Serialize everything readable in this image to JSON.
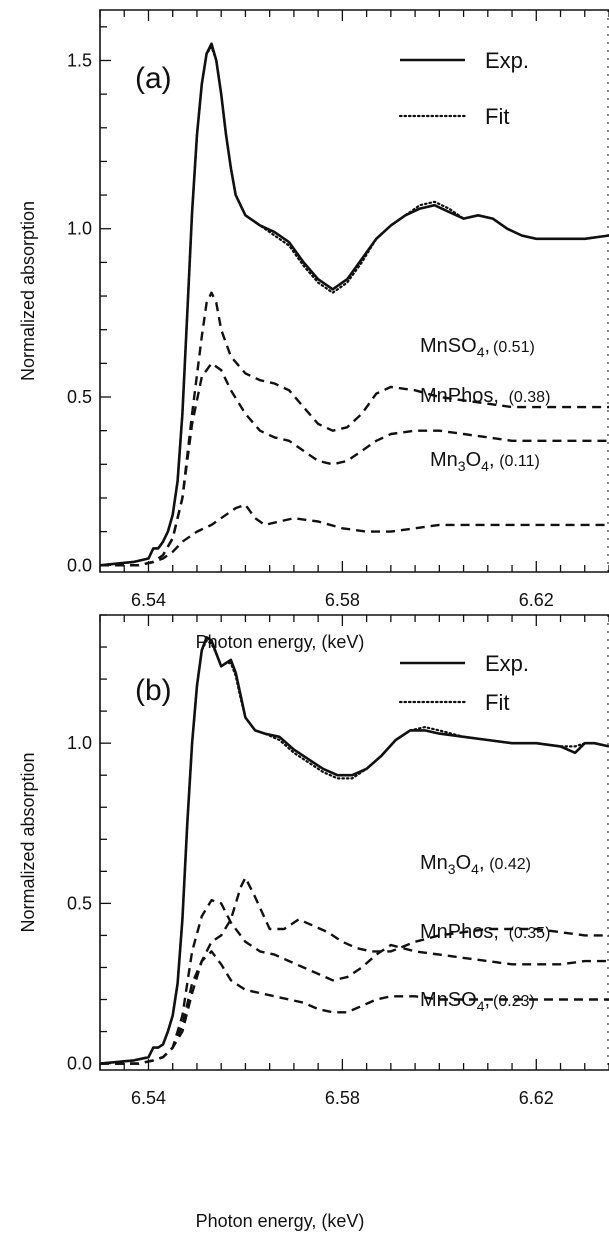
{
  "chart_data": [
    {
      "type": "line",
      "panel_label": "(a)",
      "xlabel": "Photon energy, (keV)",
      "ylabel": "Normalized absorption",
      "xlim": [
        6.53,
        6.635
      ],
      "ylim": [
        -0.02,
        1.65
      ],
      "xticks": [
        6.54,
        6.58,
        6.62
      ],
      "xtick_labels": [
        "6.54",
        "6.58",
        "6.62"
      ],
      "yticks": [
        0.0,
        0.5,
        1.0,
        1.5
      ],
      "ytick_labels": [
        "0.0",
        "0.5",
        "1.0",
        "1.5"
      ],
      "legend": [
        {
          "label": "Exp.",
          "style": "solid"
        },
        {
          "label": "Fit",
          "style": "dotted"
        }
      ],
      "series": [
        {
          "name": "Exp.",
          "style": "solid",
          "x": [
            6.53,
            6.537,
            6.54,
            6.541,
            6.542,
            6.543,
            6.544,
            6.545,
            6.546,
            6.547,
            6.548,
            6.549,
            6.55,
            6.551,
            6.552,
            6.553,
            6.554,
            6.555,
            6.556,
            6.557,
            6.558,
            6.56,
            6.563,
            6.566,
            6.569,
            6.572,
            6.575,
            6.578,
            6.581,
            6.584,
            6.587,
            6.59,
            6.593,
            6.596,
            6.599,
            6.602,
            6.605,
            6.608,
            6.611,
            6.614,
            6.617,
            6.62,
            6.625,
            6.63,
            6.635
          ],
          "y": [
            0.0,
            0.01,
            0.02,
            0.05,
            0.05,
            0.07,
            0.1,
            0.15,
            0.25,
            0.45,
            0.75,
            1.05,
            1.28,
            1.43,
            1.52,
            1.55,
            1.5,
            1.4,
            1.28,
            1.18,
            1.1,
            1.04,
            1.01,
            0.99,
            0.96,
            0.9,
            0.85,
            0.82,
            0.85,
            0.91,
            0.97,
            1.01,
            1.04,
            1.06,
            1.07,
            1.05,
            1.03,
            1.04,
            1.03,
            1.0,
            0.98,
            0.97,
            0.97,
            0.97,
            0.98
          ]
        },
        {
          "name": "Fit",
          "style": "dotted",
          "x": [
            6.53,
            6.537,
            6.54,
            6.541,
            6.542,
            6.543,
            6.544,
            6.545,
            6.546,
            6.547,
            6.548,
            6.549,
            6.55,
            6.551,
            6.552,
            6.553,
            6.554,
            6.555,
            6.556,
            6.557,
            6.558,
            6.56,
            6.563,
            6.566,
            6.569,
            6.572,
            6.575,
            6.578,
            6.581,
            6.584,
            6.587,
            6.59,
            6.593,
            6.596,
            6.599,
            6.602,
            6.605,
            6.608,
            6.611,
            6.614,
            6.617,
            6.62,
            6.625,
            6.63,
            6.635
          ],
          "y": [
            0.0,
            0.01,
            0.02,
            0.05,
            0.05,
            0.07,
            0.1,
            0.15,
            0.25,
            0.45,
            0.75,
            1.05,
            1.28,
            1.43,
            1.52,
            1.54,
            1.5,
            1.4,
            1.28,
            1.18,
            1.1,
            1.04,
            1.01,
            0.98,
            0.95,
            0.89,
            0.84,
            0.81,
            0.84,
            0.9,
            0.97,
            1.01,
            1.04,
            1.07,
            1.08,
            1.06,
            1.03,
            1.04,
            1.03,
            1.0,
            0.98,
            0.97,
            0.97,
            0.97,
            0.98
          ]
        },
        {
          "name": "MnSO4",
          "style": "dashed",
          "x": [
            6.53,
            6.538,
            6.541,
            6.543,
            6.545,
            6.547,
            6.549,
            6.551,
            6.552,
            6.553,
            6.554,
            6.555,
            6.557,
            6.56,
            6.563,
            6.566,
            6.569,
            6.572,
            6.575,
            6.578,
            6.581,
            6.584,
            6.587,
            6.59,
            6.595,
            6.6,
            6.605,
            6.61,
            6.615,
            6.62,
            6.625,
            6.63,
            6.635
          ],
          "y": [
            0.0,
            0.0,
            0.01,
            0.03,
            0.08,
            0.2,
            0.45,
            0.68,
            0.78,
            0.81,
            0.78,
            0.7,
            0.62,
            0.57,
            0.55,
            0.54,
            0.52,
            0.47,
            0.42,
            0.4,
            0.41,
            0.45,
            0.51,
            0.53,
            0.52,
            0.5,
            0.49,
            0.48,
            0.47,
            0.47,
            0.47,
            0.47,
            0.47
          ]
        },
        {
          "name": "MnPhos",
          "style": "dashed",
          "x": [
            6.53,
            6.538,
            6.541,
            6.543,
            6.545,
            6.547,
            6.549,
            6.551,
            6.553,
            6.555,
            6.557,
            6.56,
            6.563,
            6.566,
            6.569,
            6.572,
            6.575,
            6.578,
            6.581,
            6.584,
            6.587,
            6.59,
            6.595,
            6.6,
            6.605,
            6.61,
            6.615,
            6.62,
            6.625,
            6.63,
            6.635
          ],
          "y": [
            0.0,
            0.0,
            0.01,
            0.03,
            0.08,
            0.2,
            0.42,
            0.56,
            0.6,
            0.58,
            0.52,
            0.45,
            0.4,
            0.38,
            0.37,
            0.34,
            0.31,
            0.3,
            0.31,
            0.34,
            0.37,
            0.39,
            0.4,
            0.4,
            0.39,
            0.38,
            0.37,
            0.37,
            0.37,
            0.37,
            0.37
          ]
        },
        {
          "name": "Mn3O4",
          "style": "dashed",
          "x": [
            6.53,
            6.538,
            6.541,
            6.543,
            6.545,
            6.547,
            6.55,
            6.553,
            6.556,
            6.558,
            6.56,
            6.562,
            6.564,
            6.567,
            6.57,
            6.575,
            6.58,
            6.585,
            6.59,
            6.595,
            6.6,
            6.605,
            6.61,
            6.615,
            6.62,
            6.625,
            6.63,
            6.635
          ],
          "y": [
            0.0,
            0.0,
            0.01,
            0.02,
            0.04,
            0.07,
            0.1,
            0.12,
            0.15,
            0.17,
            0.18,
            0.14,
            0.12,
            0.13,
            0.14,
            0.13,
            0.11,
            0.1,
            0.1,
            0.11,
            0.12,
            0.12,
            0.12,
            0.12,
            0.12,
            0.12,
            0.12,
            0.12
          ]
        }
      ],
      "annotations": [
        {
          "name": "MnSO4",
          "sub": "4",
          "base": "MnSO",
          "weight": "(0.51)"
        },
        {
          "name": "MnPhos",
          "weight": "(0.38)"
        },
        {
          "name": "Mn3O4",
          "weight": "(0.11)"
        }
      ]
    },
    {
      "type": "line",
      "panel_label": "(b)",
      "xlabel": "Photon energy, (keV)",
      "ylabel": "Normalized absorption",
      "xlim": [
        6.53,
        6.635
      ],
      "ylim": [
        -0.02,
        1.4
      ],
      "xticks": [
        6.54,
        6.58,
        6.62
      ],
      "xtick_labels": [
        "6.54",
        "6.58",
        "6.62"
      ],
      "yticks": [
        0.0,
        0.5,
        1.0
      ],
      "ytick_labels": [
        "0.0",
        "0.5",
        "1.0"
      ],
      "legend": [
        {
          "label": "Exp.",
          "style": "solid"
        },
        {
          "label": "Fit",
          "style": "dotted"
        }
      ],
      "series": [
        {
          "name": "Exp.",
          "style": "solid",
          "x": [
            6.53,
            6.537,
            6.54,
            6.541,
            6.542,
            6.543,
            6.544,
            6.545,
            6.546,
            6.547,
            6.548,
            6.549,
            6.55,
            6.551,
            6.552,
            6.553,
            6.554,
            6.555,
            6.556,
            6.557,
            6.558,
            6.559,
            6.56,
            6.562,
            6.564,
            6.567,
            6.57,
            6.573,
            6.576,
            6.579,
            6.582,
            6.585,
            6.588,
            6.591,
            6.594,
            6.597,
            6.6,
            6.605,
            6.61,
            6.615,
            6.62,
            6.625,
            6.628,
            6.63,
            6.632,
            6.635
          ],
          "y": [
            0.0,
            0.01,
            0.02,
            0.05,
            0.05,
            0.06,
            0.1,
            0.15,
            0.25,
            0.45,
            0.75,
            1.0,
            1.18,
            1.29,
            1.33,
            1.32,
            1.28,
            1.24,
            1.25,
            1.26,
            1.22,
            1.15,
            1.08,
            1.04,
            1.03,
            1.02,
            0.98,
            0.95,
            0.92,
            0.9,
            0.9,
            0.92,
            0.96,
            1.01,
            1.04,
            1.04,
            1.03,
            1.02,
            1.01,
            1.0,
            1.0,
            0.99,
            0.97,
            1.0,
            1.0,
            0.99
          ]
        },
        {
          "name": "Fit",
          "style": "dotted",
          "x": [
            6.53,
            6.537,
            6.54,
            6.541,
            6.542,
            6.543,
            6.544,
            6.545,
            6.546,
            6.547,
            6.548,
            6.549,
            6.55,
            6.551,
            6.552,
            6.553,
            6.554,
            6.555,
            6.556,
            6.557,
            6.558,
            6.559,
            6.56,
            6.562,
            6.564,
            6.567,
            6.57,
            6.573,
            6.576,
            6.579,
            6.582,
            6.585,
            6.588,
            6.591,
            6.594,
            6.597,
            6.6,
            6.605,
            6.61,
            6.615,
            6.62,
            6.625,
            6.628,
            6.63,
            6.632,
            6.635
          ],
          "y": [
            0.0,
            0.01,
            0.02,
            0.05,
            0.05,
            0.06,
            0.1,
            0.15,
            0.25,
            0.45,
            0.75,
            1.0,
            1.18,
            1.29,
            1.32,
            1.31,
            1.28,
            1.24,
            1.25,
            1.25,
            1.21,
            1.14,
            1.08,
            1.04,
            1.03,
            1.01,
            0.97,
            0.94,
            0.91,
            0.89,
            0.89,
            0.92,
            0.96,
            1.01,
            1.04,
            1.05,
            1.04,
            1.02,
            1.01,
            1.0,
            1.0,
            0.99,
            0.99,
            1.0,
            1.0,
            0.99
          ]
        },
        {
          "name": "Mn3O4",
          "style": "dashed",
          "x": [
            6.53,
            6.538,
            6.541,
            6.543,
            6.545,
            6.547,
            6.549,
            6.551,
            6.553,
            6.555,
            6.557,
            6.559,
            6.56,
            6.562,
            6.565,
            6.568,
            6.571,
            6.574,
            6.577,
            6.58,
            6.583,
            6.586,
            6.59,
            6.595,
            6.6,
            6.605,
            6.61,
            6.615,
            6.62,
            6.625,
            6.63,
            6.635
          ],
          "y": [
            0.0,
            0.0,
            0.01,
            0.02,
            0.05,
            0.1,
            0.22,
            0.32,
            0.38,
            0.4,
            0.45,
            0.55,
            0.58,
            0.52,
            0.42,
            0.42,
            0.45,
            0.43,
            0.41,
            0.38,
            0.36,
            0.35,
            0.35,
            0.38,
            0.4,
            0.41,
            0.42,
            0.42,
            0.42,
            0.41,
            0.4,
            0.4
          ]
        },
        {
          "name": "MnPhos",
          "style": "dashed",
          "x": [
            6.53,
            6.538,
            6.541,
            6.543,
            6.545,
            6.547,
            6.549,
            6.551,
            6.553,
            6.555,
            6.557,
            6.56,
            6.563,
            6.566,
            6.569,
            6.572,
            6.575,
            6.578,
            6.581,
            6.584,
            6.587,
            6.59,
            6.595,
            6.6,
            6.605,
            6.61,
            6.615,
            6.62,
            6.625,
            6.63,
            6.635
          ],
          "y": [
            0.0,
            0.0,
            0.01,
            0.02,
            0.05,
            0.15,
            0.35,
            0.46,
            0.51,
            0.5,
            0.44,
            0.38,
            0.35,
            0.34,
            0.32,
            0.3,
            0.28,
            0.26,
            0.27,
            0.3,
            0.34,
            0.37,
            0.35,
            0.34,
            0.33,
            0.32,
            0.31,
            0.31,
            0.31,
            0.32,
            0.32
          ]
        },
        {
          "name": "MnSO4",
          "style": "dashed",
          "x": [
            6.53,
            6.538,
            6.541,
            6.543,
            6.545,
            6.547,
            6.549,
            6.551,
            6.553,
            6.555,
            6.557,
            6.56,
            6.563,
            6.566,
            6.569,
            6.572,
            6.575,
            6.578,
            6.581,
            6.584,
            6.587,
            6.59,
            6.595,
            6.6,
            6.605,
            6.61,
            6.615,
            6.62,
            6.625,
            6.63,
            6.635
          ],
          "y": [
            0.0,
            0.0,
            0.01,
            0.02,
            0.05,
            0.12,
            0.25,
            0.32,
            0.35,
            0.31,
            0.26,
            0.23,
            0.22,
            0.21,
            0.2,
            0.19,
            0.17,
            0.16,
            0.16,
            0.18,
            0.2,
            0.21,
            0.21,
            0.2,
            0.2,
            0.2,
            0.2,
            0.2,
            0.2,
            0.2,
            0.2
          ]
        }
      ],
      "annotations": [
        {
          "name": "Mn3O4",
          "weight": "(0.42)"
        },
        {
          "name": "MnPhos",
          "weight": "(0.35)"
        },
        {
          "name": "MnSO4",
          "weight": "(0.23)"
        }
      ]
    }
  ]
}
